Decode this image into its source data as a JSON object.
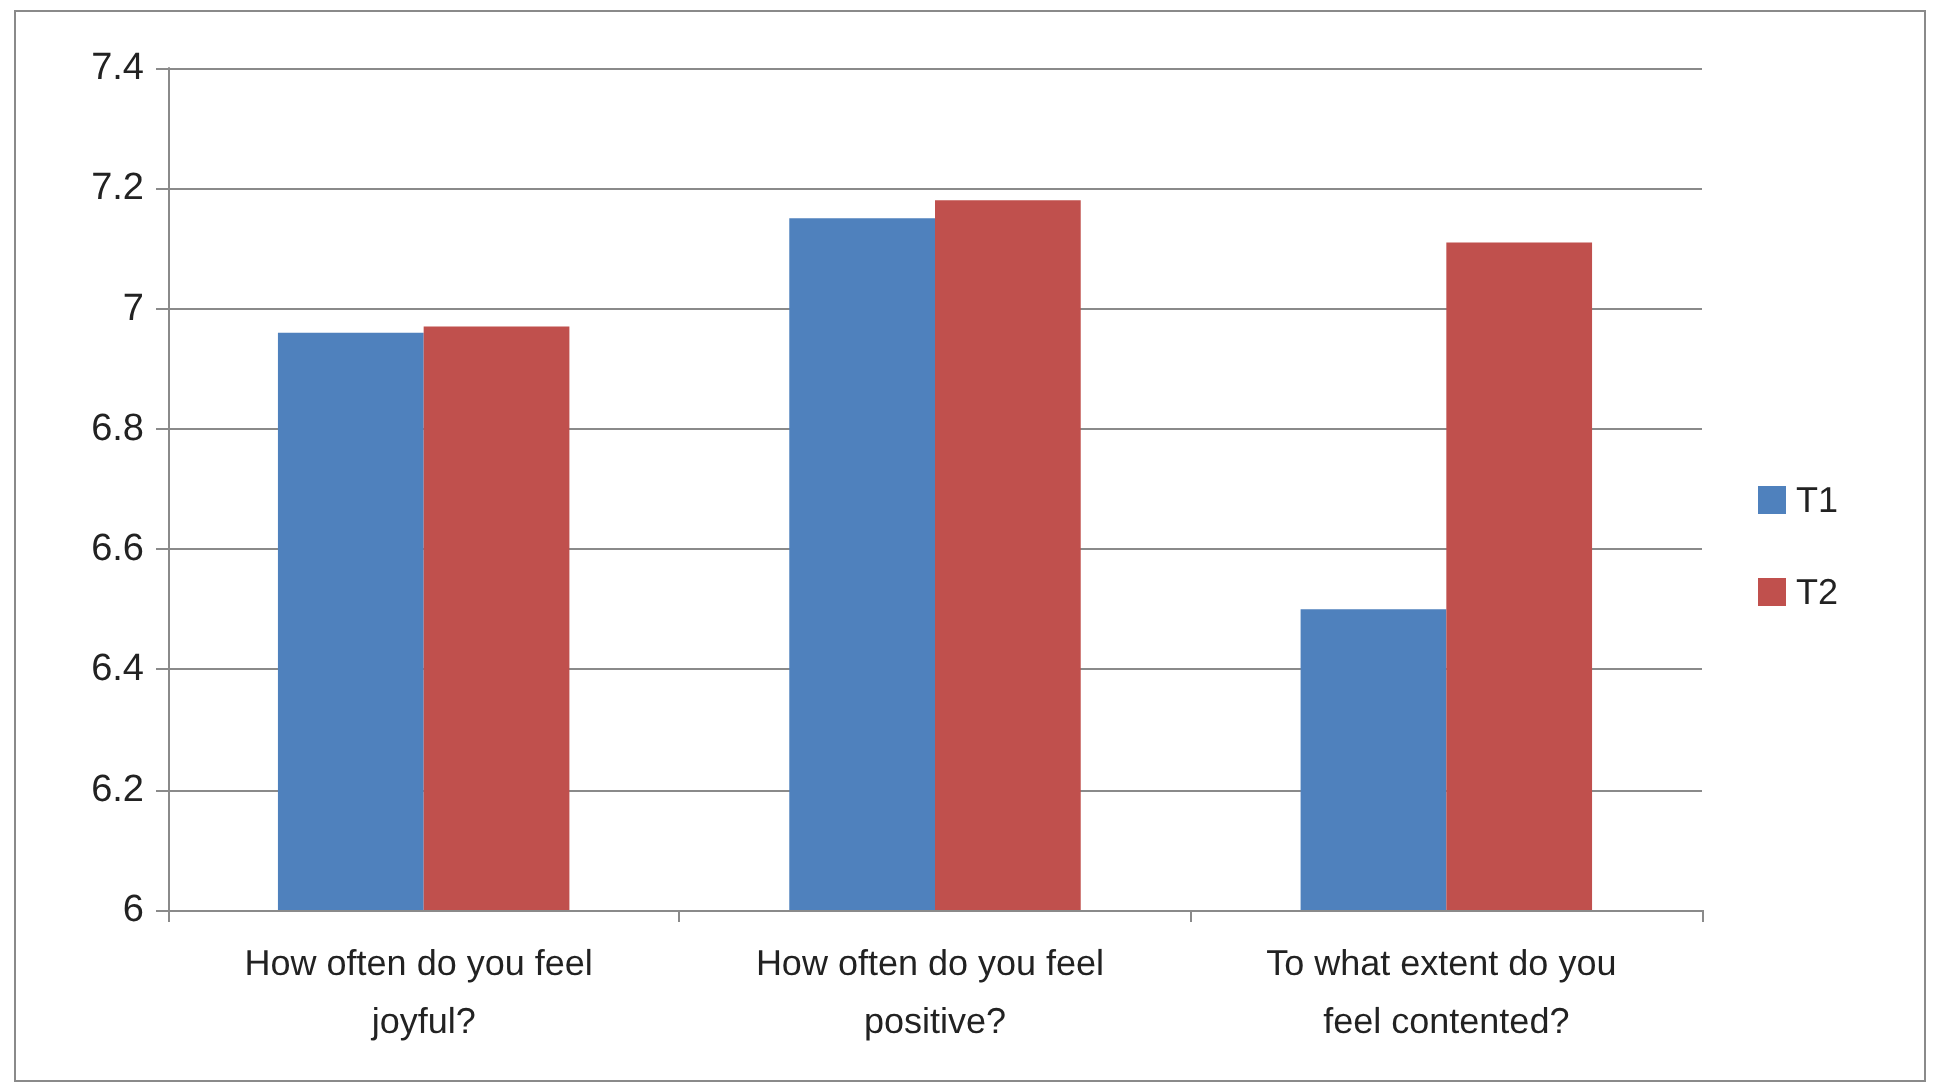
{
  "chart_data": {
    "type": "bar",
    "categories": [
      "How often do you feel joyful?",
      "How often do you feel positive?",
      "To what extent do you feel contented?"
    ],
    "series": [
      {
        "name": "T1",
        "color": "#4f81bd",
        "values": [
          6.96,
          7.15,
          6.5
        ]
      },
      {
        "name": "T2",
        "color": "#c0504d",
        "values": [
          6.97,
          7.18,
          7.11
        ]
      }
    ],
    "ylim": [
      6,
      7.4
    ],
    "yticks": [
      6,
      6.2,
      6.4,
      6.6,
      6.8,
      7,
      7.2,
      7.4
    ],
    "grid": "y",
    "legend": "right"
  }
}
